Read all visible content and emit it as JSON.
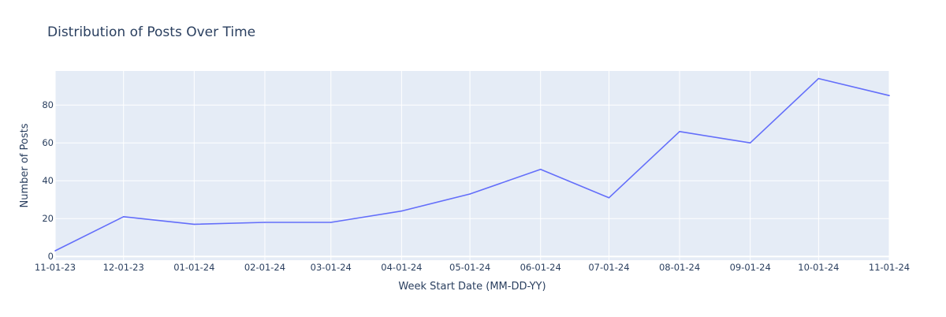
{
  "chart_data": {
    "type": "line",
    "title": "Distribution of Posts Over Time",
    "xlabel": "Week Start Date (MM-DD-YY)",
    "ylabel": "Number of Posts",
    "x": [
      "2023-11-01",
      "2023-12-01",
      "2024-01-01",
      "2024-02-01",
      "2024-03-01",
      "2024-04-01",
      "2024-05-01",
      "2024-06-01",
      "2024-07-01",
      "2024-08-01",
      "2024-09-01",
      "2024-10-01",
      "2024-11-01"
    ],
    "x_tick_labels": [
      "11-01-23",
      "12-01-23",
      "01-01-24",
      "02-01-24",
      "03-01-24",
      "04-01-24",
      "05-01-24",
      "06-01-24",
      "07-01-24",
      "08-01-24",
      "09-01-24",
      "10-01-24",
      "11-01-24"
    ],
    "series": [
      {
        "values": [
          3,
          21,
          17,
          18,
          18,
          24,
          33,
          46,
          31,
          66,
          60,
          94,
          85
        ]
      }
    ],
    "y_ticks": [
      0,
      20,
      40,
      60,
      80
    ],
    "ylim": [
      -2,
      98
    ],
    "xlim": [
      "2023-11-01",
      "2024-11-01"
    ],
    "grid": true,
    "legend": "none",
    "colors": {
      "plot_background": "#e5ecf6",
      "grid": "#ffffff",
      "line": "#636efa",
      "text": "#2a3f5f"
    }
  }
}
